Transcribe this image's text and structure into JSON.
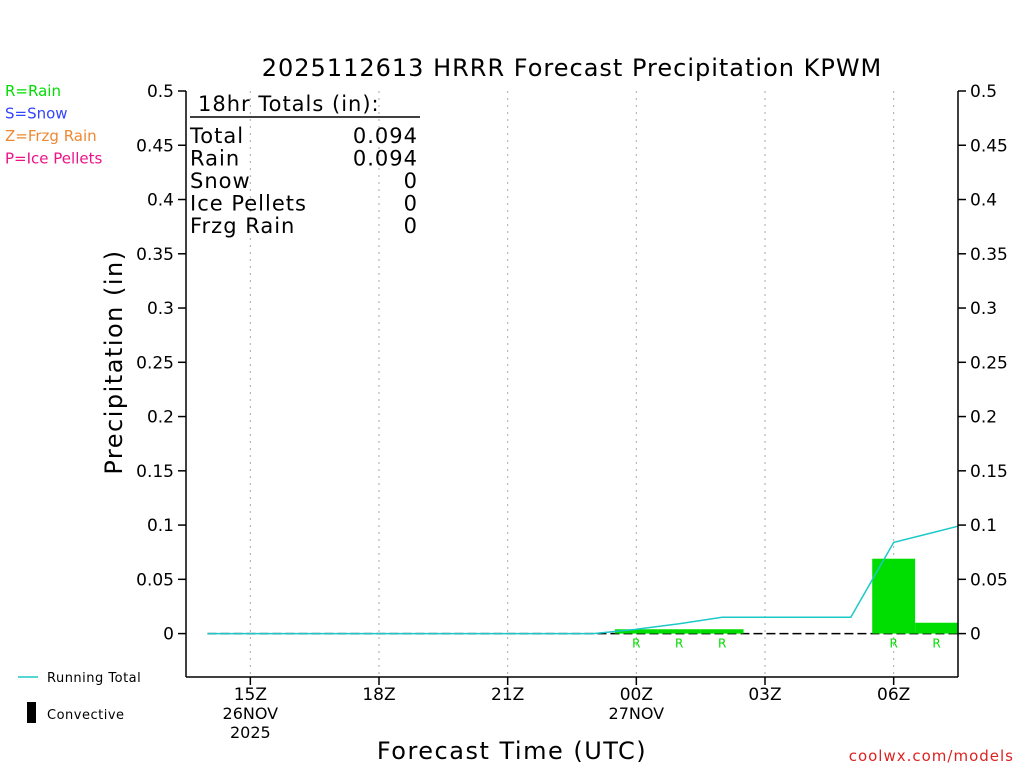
{
  "chart_data": {
    "type": "bar",
    "title": "2025112613 HRRR Forecast Precipitation KPWM",
    "ylabel": "Precipitation (in)",
    "xlabel": "Forecast Time (UTC)",
    "ylim": [
      -0.04,
      0.5
    ],
    "xlim_hours": [
      13.5,
      31.5
    ],
    "y_ticks": [
      "0",
      "0.05",
      "0.1",
      "0.15",
      "0.2",
      "0.25",
      "0.3",
      "0.35",
      "0.4",
      "0.45",
      "0.5"
    ],
    "x_ticks": [
      {
        "label": "15Z",
        "hour": 15,
        "date": "26NOV",
        "year": "2025"
      },
      {
        "label": "18Z",
        "hour": 18,
        "date": "",
        "year": ""
      },
      {
        "label": "21Z",
        "hour": 21,
        "date": "",
        "year": ""
      },
      {
        "label": "00Z",
        "hour": 24,
        "date": "27NOV",
        "year": ""
      },
      {
        "label": "03Z",
        "hour": 27,
        "date": "",
        "year": ""
      },
      {
        "label": "06Z",
        "hour": 30,
        "date": "",
        "year": ""
      }
    ],
    "grid": "vertical dotted",
    "bars": [
      {
        "hour": 24,
        "value": 0.004,
        "ptype": "R"
      },
      {
        "hour": 25,
        "value": 0.004,
        "ptype": "R"
      },
      {
        "hour": 26,
        "value": 0.004,
        "ptype": "R"
      },
      {
        "hour": 30,
        "value": 0.069,
        "ptype": "R"
      },
      {
        "hour": 31,
        "value": 0.01,
        "ptype": "R"
      }
    ],
    "running_total": {
      "name": "Running Total",
      "hours": [
        14,
        15,
        16,
        17,
        18,
        19,
        20,
        21,
        22,
        23,
        24,
        25,
        26,
        27,
        28,
        29,
        30,
        31
      ],
      "values": [
        0,
        0,
        0,
        0,
        0,
        0,
        0,
        0,
        0,
        0,
        0.004,
        0.009,
        0.015,
        0.015,
        0.015,
        0.015,
        0.084,
        0.094
      ]
    },
    "convective": {
      "name": "Convective",
      "values": []
    },
    "ptype_legend": [
      {
        "text": "R=Rain",
        "color": "#00dd00"
      },
      {
        "text": "S=Snow",
        "color": "#3344ff"
      },
      {
        "text": "Z=Frzg Rain",
        "color": "#ee8833"
      },
      {
        "text": "P=Ice Pellets",
        "color": "#ee1188"
      }
    ],
    "totals": {
      "heading": "18hr Totals (in):",
      "rows": [
        {
          "label": "Total",
          "value": "0.094"
        },
        {
          "label": "Rain",
          "value": "0.094"
        },
        {
          "label": "Snow",
          "value": "0"
        },
        {
          "label": "Ice Pellets",
          "value": "0"
        },
        {
          "label": "Frzg Rain",
          "value": "0"
        }
      ]
    },
    "key": {
      "running_total": "Running Total",
      "convective": "Convective"
    },
    "credit": "coolwx.com/models"
  },
  "colors": {
    "bar": "#00dd00",
    "running_total": "#1ec8c8",
    "grid": "#aaaaaa",
    "credit": "#dd2222",
    "axis": "#000000"
  }
}
